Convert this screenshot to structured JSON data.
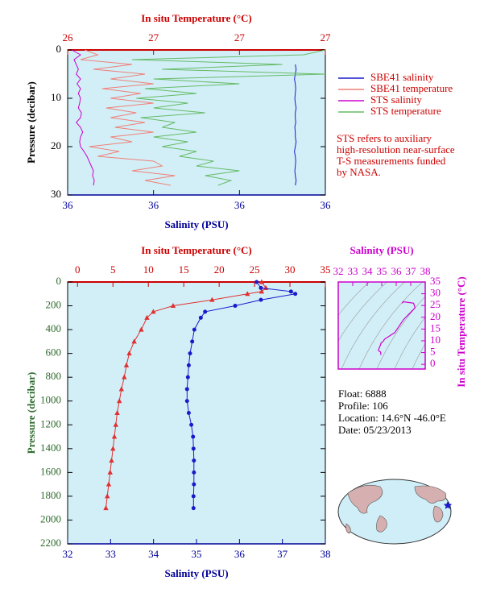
{
  "chart_data": [
    {
      "type": "profile",
      "x2_label": "In situ Temperature (°C)",
      "x_label": "Salinity (PSU)",
      "y_label": "Pressure (decibar)",
      "xlim": [
        35.8,
        36.4
      ],
      "xticks": [
        {
          "value": 35.8,
          "label": "36"
        },
        {
          "value": 36.0,
          "label": "36"
        },
        {
          "value": 36.2,
          "label": "36"
        },
        {
          "value": 36.4,
          "label": "36"
        }
      ],
      "x2lim": [
        26.4,
        27.0
      ],
      "x2ticks": [
        {
          "value": 26.4,
          "label": "26"
        },
        {
          "value": 26.6,
          "label": "27"
        },
        {
          "value": 26.8,
          "label": "27"
        },
        {
          "value": 27.0,
          "label": "27"
        }
      ],
      "ylim": [
        0,
        30
      ],
      "yticks": [
        0,
        10,
        20,
        30
      ],
      "y_inverted": true,
      "legend_position": "right",
      "pressure": [
        0,
        1,
        2,
        3,
        4,
        5,
        6,
        7,
        8,
        9,
        10,
        11,
        12,
        13,
        14,
        15,
        16,
        17,
        18,
        19,
        20,
        21,
        22,
        23,
        24,
        25,
        26,
        27,
        28
      ],
      "series": [
        {
          "name": "SBE41 salinity",
          "color": "#1a1acc",
          "axis": "x",
          "values": [
            null,
            null,
            null,
            36.33,
            36.332,
            36.33,
            36.328,
            36.33,
            36.331,
            36.33,
            36.329,
            36.33,
            36.332,
            36.33,
            36.33,
            36.331,
            36.329,
            36.33,
            36.33,
            36.332,
            36.33,
            36.328,
            36.33,
            36.331,
            36.33,
            36.329,
            36.33,
            36.332,
            36.33
          ]
        },
        {
          "name": "SBE41 temperature",
          "color": "#f08078",
          "axis": "x2",
          "values": [
            26.44,
            26.47,
            26.43,
            26.55,
            26.46,
            26.58,
            26.5,
            26.6,
            26.48,
            26.57,
            26.5,
            26.6,
            26.49,
            26.56,
            26.5,
            26.58,
            26.51,
            26.6,
            26.5,
            26.55,
            26.45,
            26.52,
            26.47,
            26.6,
            26.62,
            26.55,
            26.65,
            26.58,
            26.64
          ]
        },
        {
          "name": "STS salinity",
          "color": "#cc00cc",
          "axis": "x",
          "values": [
            35.81,
            35.83,
            35.815,
            35.82,
            35.825,
            35.82,
            35.83,
            35.822,
            35.83,
            35.825,
            35.83,
            35.828,
            35.825,
            35.832,
            35.83,
            35.82,
            35.83,
            35.835,
            35.83,
            35.828,
            35.83,
            35.838,
            35.845,
            35.85,
            35.855,
            35.86,
            35.858,
            35.862,
            35.86
          ]
        },
        {
          "name": "STS temperature",
          "color": "#66bb66",
          "axis": "x2",
          "values": [
            27.0,
            26.95,
            26.55,
            26.9,
            26.62,
            27.0,
            26.6,
            26.8,
            26.58,
            26.7,
            26.56,
            26.68,
            26.6,
            26.72,
            26.57,
            26.65,
            26.62,
            26.7,
            26.6,
            26.68,
            26.62,
            26.7,
            26.66,
            26.74,
            26.7,
            26.8,
            26.72,
            26.78,
            26.75
          ]
        }
      ],
      "note": [
        "STS refers to auxiliary",
        "high-resolution near-surface",
        "T-S measurements funded",
        "by NASA."
      ]
    },
    {
      "type": "profile",
      "x2_label": "In situ Temperature (°C)",
      "x_label": "Salinity (PSU)",
      "y_label": "Pressure (decibar)",
      "xlim": [
        32,
        38
      ],
      "xticks": [
        32,
        33,
        34,
        35,
        36,
        37,
        38
      ],
      "x2lim": [
        -1.4,
        35
      ],
      "x2ticks": [
        0,
        5,
        10,
        15,
        20,
        25,
        30,
        35
      ],
      "ylim": [
        0,
        2200
      ],
      "yticks": [
        0,
        200,
        400,
        600,
        800,
        1000,
        1200,
        1400,
        1600,
        1800,
        2000,
        2200
      ],
      "y_inverted": true,
      "pressure": [
        0,
        50,
        80,
        100,
        150,
        200,
        250,
        300,
        400,
        500,
        600,
        700,
        800,
        900,
        1000,
        1100,
        1200,
        1300,
        1400,
        1500,
        1600,
        1700,
        1800,
        1900
      ],
      "series": [
        {
          "color": "#e03030",
          "axis": "x2",
          "marker": "triangle",
          "values": [
            26.0,
            26.6,
            26.0,
            24,
            19,
            13.5,
            10.7,
            9.8,
            9.0,
            8.0,
            7.3,
            6.9,
            6.6,
            6.2,
            5.9,
            5.6,
            5.4,
            5.2,
            5.0,
            4.8,
            4.6,
            4.4,
            4.2,
            4.0
          ]
        },
        {
          "color": "#1a1acc",
          "axis": "x",
          "marker": "circle",
          "values": [
            36.4,
            36.5,
            37.2,
            37.3,
            36.5,
            35.9,
            35.2,
            35.1,
            34.95,
            34.9,
            34.85,
            34.82,
            34.8,
            34.78,
            34.78,
            34.82,
            34.88,
            34.92,
            34.93,
            34.94,
            34.94,
            34.94,
            34.93,
            34.93
          ]
        }
      ]
    },
    {
      "type": "ts",
      "x_label": "Salinity (PSU)",
      "y_label": "In situ Temperature (°C)",
      "xlim": [
        32,
        38
      ],
      "xticks": [
        32,
        33,
        34,
        35,
        36,
        37,
        38
      ],
      "ylim": [
        -2,
        35
      ],
      "yticks": [
        0,
        5,
        10,
        15,
        20,
        25,
        30,
        35
      ],
      "color": "#cc00cc"
    }
  ],
  "info": [
    "Float:  6888",
    "Profile:  106",
    "Location:  14.6°N  -46.0°E",
    "Date:  05/23/2013"
  ]
}
